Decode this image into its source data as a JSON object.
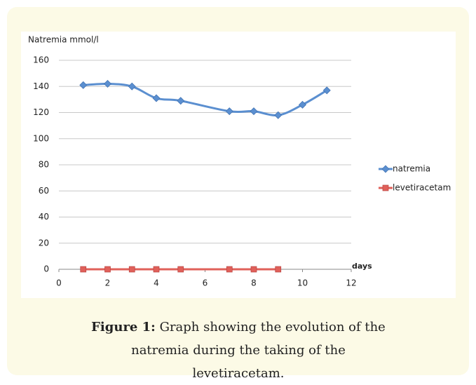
{
  "chart_data": {
    "type": "line",
    "y_label": "Natremia mmol/l",
    "x_label": "days",
    "series": [
      {
        "name": "natremia",
        "color": "#5b8fd0",
        "marker": "diamond",
        "x": [
          1,
          2,
          3,
          4,
          5,
          7,
          8,
          9,
          10,
          11
        ],
        "values": [
          141,
          142,
          140,
          131,
          129,
          121,
          121,
          118,
          126,
          137
        ]
      },
      {
        "name": "levetiracetam",
        "color": "#e0605a",
        "marker": "square",
        "x": [
          1,
          2,
          3,
          4,
          5,
          7,
          8,
          9
        ],
        "values": [
          0,
          0,
          0,
          0,
          0,
          0,
          0,
          0
        ]
      }
    ],
    "xlim": [
      0,
      12
    ],
    "xticks": [
      0,
      2,
      4,
      6,
      8,
      10,
      12
    ],
    "ylim": [
      0,
      160
    ],
    "yticks": [
      0,
      20,
      40,
      60,
      80,
      100,
      120,
      140,
      160
    ],
    "grid": true,
    "legend": "right"
  },
  "caption": {
    "label": "Figure 1:",
    "text": "Graph showing the evolution of the natremia during the taking of the levetiracetam."
  }
}
